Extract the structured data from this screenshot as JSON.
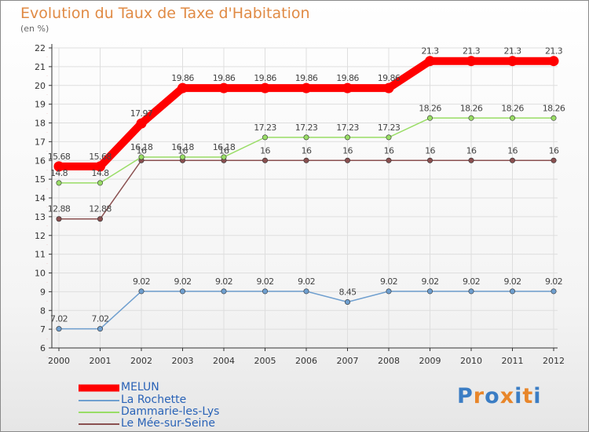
{
  "chart_data": {
    "type": "line",
    "title": "Evolution du Taux de Taxe d'Habitation",
    "ylabel": "(en %)",
    "xlabel": "",
    "categories": [
      "2000",
      "2001",
      "2002",
      "2003",
      "2004",
      "2005",
      "2006",
      "2007",
      "2008",
      "2009",
      "2010",
      "2011",
      "2012"
    ],
    "ylim": [
      6,
      22
    ],
    "yticks": [
      6,
      7,
      8,
      9,
      10,
      11,
      12,
      13,
      14,
      15,
      16,
      17,
      18,
      19,
      20,
      21,
      22
    ],
    "grid": true,
    "legend_position": "bottom-left",
    "series": [
      {
        "name": "MELUN",
        "color": "#ff0000",
        "values": [
          15.68,
          15.68,
          17.97,
          19.86,
          19.86,
          19.86,
          19.86,
          19.86,
          19.86,
          21.3,
          21.3,
          21.3,
          21.3
        ],
        "labels": [
          "15.68",
          "15.68",
          "17.97",
          "19.86",
          "19.86",
          "19.86",
          "19.86",
          "19.86",
          "19.86",
          "21.3",
          "21.3",
          "21.3",
          "21.3"
        ]
      },
      {
        "name": "La Rochette",
        "color": "#6f9fcf",
        "values": [
          7.02,
          7.02,
          9.02,
          9.02,
          9.02,
          9.02,
          9.02,
          8.45,
          9.02,
          9.02,
          9.02,
          9.02,
          9.02
        ],
        "labels": [
          "7.02",
          "7.02",
          "9.02",
          "9.02",
          "9.02",
          "9.02",
          "9.02",
          "8.45",
          "9.02",
          "9.02",
          "9.02",
          "9.02",
          "9.02"
        ]
      },
      {
        "name": "Dammarie-les-Lys",
        "color": "#99dd66",
        "values": [
          14.8,
          14.8,
          16.18,
          16.18,
          16.18,
          17.23,
          17.23,
          17.23,
          17.23,
          18.26,
          18.26,
          18.26,
          18.26
        ],
        "labels": [
          "14.8",
          "14.8",
          "16.18",
          "16.18",
          "16.18",
          "17.23",
          "17.23",
          "17.23",
          "17.23",
          "18.26",
          "18.26",
          "18.26",
          "18.26"
        ]
      },
      {
        "name": "Le Mée-sur-Seine",
        "color": "#8a5050",
        "values": [
          12.88,
          12.88,
          16,
          16,
          16,
          16,
          16,
          16,
          16,
          16,
          16,
          16,
          16
        ],
        "labels": [
          "12.88",
          "12.88",
          "16",
          "16",
          "16",
          "16",
          "16",
          "16",
          "16",
          "16",
          "16",
          "16",
          "16"
        ]
      }
    ]
  },
  "brand": {
    "letters": [
      "P",
      "r",
      "o",
      "x",
      "i",
      "t",
      "i"
    ],
    "colors": [
      "#3b7dc4",
      "#e8862a",
      "#3b7dc4",
      "#e8862a",
      "#3b7dc4",
      "#e8862a",
      "#3b7dc4"
    ]
  }
}
